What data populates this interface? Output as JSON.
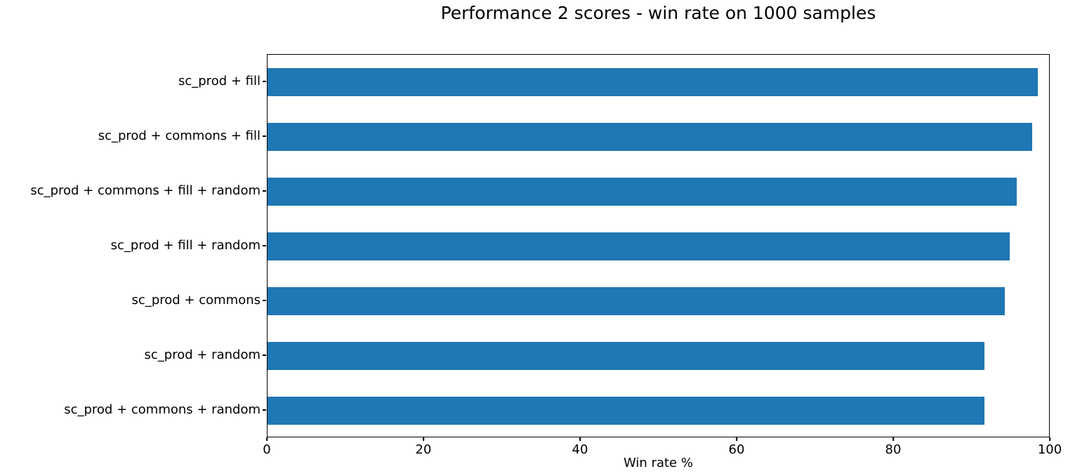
{
  "chart_data": {
    "type": "bar",
    "orientation": "horizontal",
    "title": "Performance 2 scores - win rate on 1000 samples",
    "xlabel": "Win rate %",
    "ylabel": "",
    "categories": [
      "sc_prod + fill",
      "sc_prod + commons + fill",
      "sc_prod + commons + fill + random",
      "sc_prod + fill + random",
      "sc_prod + commons",
      "sc_prod + random",
      "sc_prod + commons + random"
    ],
    "values": [
      98.6,
      97.8,
      95.9,
      95.0,
      94.3,
      91.7,
      91.7
    ],
    "xlim": [
      0,
      100
    ],
    "x_ticks": [
      0,
      20,
      40,
      60,
      80,
      100
    ],
    "bar_color": "#1f77b4",
    "spine_color": "#000000",
    "grid": false,
    "legend": false
  }
}
